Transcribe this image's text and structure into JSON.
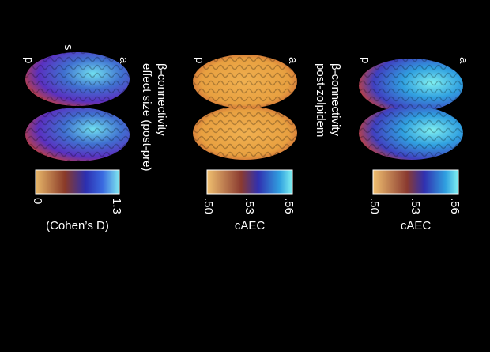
{
  "panels": [
    {
      "letters": [
        "a",
        "s",
        "p"
      ],
      "title": [
        "β-connectivity",
        "effect size (post-pre)"
      ],
      "ticks": [
        "0",
        "1.3"
      ],
      "unit": "(Cohen’s D)"
    },
    {
      "letters": [
        "a",
        "p"
      ],
      "title": [
        "β-connectivity",
        "post-zolpidem"
      ],
      "ticks": [
        ".50",
        ".53",
        ".56"
      ],
      "unit": "cAEC"
    },
    {
      "letters": [
        "a",
        "p"
      ],
      "ticks": [
        ".50",
        ".53",
        ".56"
      ],
      "unit": "cAEC"
    }
  ]
}
